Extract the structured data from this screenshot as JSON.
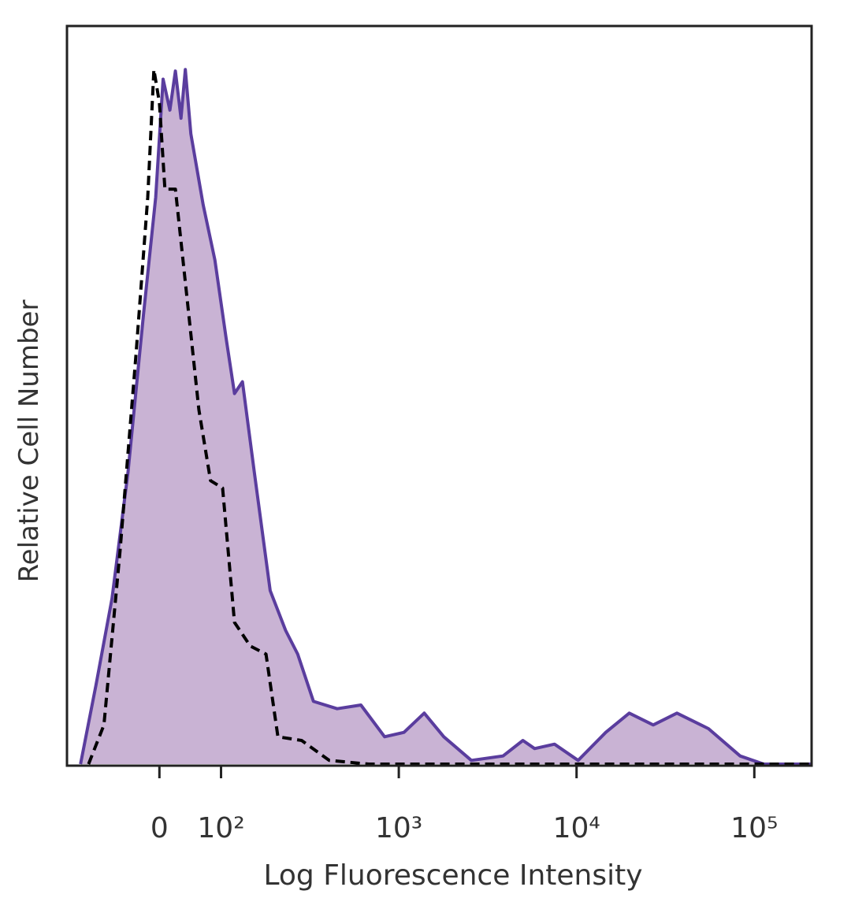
{
  "chart_data": {
    "type": "histogram-overlay",
    "x_label": "Log Fluorescence Intensity",
    "y_label": "Relative Cell Number",
    "xscale": "biexponential",
    "xlim": [
      -150,
      210000
    ],
    "ylim": [
      0,
      100
    ],
    "xticks": [
      0,
      {
        "value": 100,
        "label": "10²"
      },
      {
        "value": 1000,
        "label": "10³"
      },
      {
        "value": 10000,
        "label": "10⁴"
      },
      {
        "value": 100000,
        "label": "10⁵"
      }
    ],
    "series": [
      {
        "color": "#5a3d9e",
        "fill": "#c9b3d4",
        "dash": false,
        "x": [
          -128,
          -103,
          -77,
          -51,
          -26,
          -6,
          6,
          17,
          26,
          35,
          42,
          51,
          71,
          90,
          107,
          119,
          132,
          154,
          189,
          231,
          270,
          331,
          450,
          612,
          832,
          1070,
          1390,
          1790,
          2560,
          3860,
          4990,
          5810,
          7510,
          10200,
          14600,
          19800,
          27000,
          36700,
          55200,
          83200,
          113000,
          210000
        ],
        "values": [
          0,
          10.7,
          22.4,
          39.5,
          60.8,
          76.8,
          92.8,
          88.6,
          93.9,
          87.5,
          94.1,
          85.4,
          75.8,
          68.3,
          57.6,
          50.2,
          51.8,
          39.5,
          23.5,
          18.1,
          14.9,
          8.5,
          7.5,
          8.0,
          3.7,
          4.3,
          6.9,
          3.7,
          0.5,
          1.1,
          3.2,
          2.1,
          2.7,
          0.5,
          4.3,
          6.9,
          5.3,
          6.9,
          4.8,
          1.1,
          0,
          0
        ]
      },
      {
        "color": "#000000",
        "dash": true,
        "x": [
          -115,
          -90,
          -64,
          -38,
          -19,
          -9,
          0,
          9,
          26,
          45,
          64,
          83,
          102,
          119,
          146,
          179,
          209,
          284,
          406,
          678,
          210000
        ],
        "values": [
          0,
          5.3,
          28.8,
          55.5,
          76.8,
          94.1,
          89.6,
          77.9,
          77.9,
          63.0,
          48.0,
          38.4,
          37.4,
          19.2,
          16.0,
          14.9,
          3.7,
          3.2,
          0.5,
          0,
          0
        ]
      }
    ]
  }
}
